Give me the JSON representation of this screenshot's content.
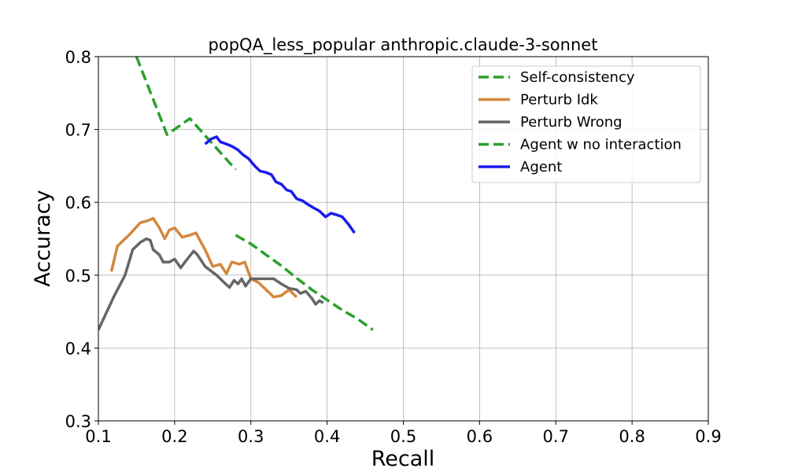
{
  "chart_data": {
    "type": "line",
    "title": "popQA_less_popular anthropic.claude-3-sonnet",
    "xlabel": "Recall",
    "ylabel": "Accuracy",
    "xlim": [
      0.1,
      0.9
    ],
    "ylim": [
      0.3,
      0.8
    ],
    "xticks": [
      "0.1",
      "0.2",
      "0.3",
      "0.4",
      "0.5",
      "0.6",
      "0.7",
      "0.8",
      "0.9"
    ],
    "yticks": [
      "0.3",
      "0.4",
      "0.5",
      "0.6",
      "0.7",
      "0.8"
    ],
    "grid": true,
    "legend_position": "top-right",
    "series": [
      {
        "name": "Self-consistency",
        "color": "#2ca02c",
        "style": "dashed",
        "points": [
          [
            0.15,
            0.8
          ],
          [
            0.19,
            0.693
          ],
          [
            0.22,
            0.715
          ],
          [
            0.28,
            0.645
          ]
        ]
      },
      {
        "name": "Perturb Idk",
        "color": "#d4873f",
        "style": "solid",
        "points": [
          [
            0.117,
            0.505
          ],
          [
            0.125,
            0.54
          ],
          [
            0.14,
            0.555
          ],
          [
            0.155,
            0.572
          ],
          [
            0.165,
            0.575
          ],
          [
            0.172,
            0.578
          ],
          [
            0.18,
            0.565
          ],
          [
            0.187,
            0.55
          ],
          [
            0.193,
            0.562
          ],
          [
            0.2,
            0.565
          ],
          [
            0.21,
            0.552
          ],
          [
            0.22,
            0.555
          ],
          [
            0.228,
            0.558
          ],
          [
            0.24,
            0.535
          ],
          [
            0.25,
            0.512
          ],
          [
            0.26,
            0.515
          ],
          [
            0.268,
            0.502
          ],
          [
            0.275,
            0.518
          ],
          [
            0.285,
            0.515
          ],
          [
            0.292,
            0.518
          ],
          [
            0.3,
            0.495
          ],
          [
            0.31,
            0.49
          ],
          [
            0.32,
            0.48
          ],
          [
            0.33,
            0.47
          ],
          [
            0.34,
            0.472
          ],
          [
            0.35,
            0.48
          ],
          [
            0.36,
            0.47
          ]
        ]
      },
      {
        "name": "Perturb Wrong",
        "color": "#666666",
        "style": "solid",
        "points": [
          [
            0.1,
            0.425
          ],
          [
            0.12,
            0.47
          ],
          [
            0.135,
            0.5
          ],
          [
            0.145,
            0.535
          ],
          [
            0.155,
            0.545
          ],
          [
            0.163,
            0.55
          ],
          [
            0.168,
            0.548
          ],
          [
            0.172,
            0.535
          ],
          [
            0.18,
            0.528
          ],
          [
            0.185,
            0.518
          ],
          [
            0.193,
            0.518
          ],
          [
            0.2,
            0.522
          ],
          [
            0.208,
            0.51
          ],
          [
            0.215,
            0.52
          ],
          [
            0.225,
            0.533
          ],
          [
            0.23,
            0.528
          ],
          [
            0.24,
            0.512
          ],
          [
            0.255,
            0.5
          ],
          [
            0.265,
            0.49
          ],
          [
            0.272,
            0.483
          ],
          [
            0.278,
            0.493
          ],
          [
            0.283,
            0.488
          ],
          [
            0.288,
            0.495
          ],
          [
            0.293,
            0.485
          ],
          [
            0.3,
            0.495
          ],
          [
            0.31,
            0.495
          ],
          [
            0.33,
            0.495
          ],
          [
            0.34,
            0.488
          ],
          [
            0.35,
            0.482
          ],
          [
            0.36,
            0.48
          ],
          [
            0.365,
            0.475
          ],
          [
            0.372,
            0.478
          ],
          [
            0.38,
            0.468
          ],
          [
            0.385,
            0.46
          ],
          [
            0.39,
            0.465
          ],
          [
            0.395,
            0.462
          ]
        ]
      },
      {
        "name": "Agent w no interaction",
        "color": "#2ca02c",
        "style": "dashed",
        "points": [
          [
            0.28,
            0.555
          ],
          [
            0.3,
            0.543
          ],
          [
            0.32,
            0.528
          ],
          [
            0.34,
            0.513
          ],
          [
            0.36,
            0.496
          ],
          [
            0.38,
            0.48
          ],
          [
            0.4,
            0.466
          ],
          [
            0.42,
            0.452
          ],
          [
            0.44,
            0.44
          ],
          [
            0.46,
            0.425
          ]
        ]
      },
      {
        "name": "Agent",
        "color": "#1a1aee",
        "style": "solid",
        "points": [
          [
            0.24,
            0.68
          ],
          [
            0.248,
            0.687
          ],
          [
            0.255,
            0.69
          ],
          [
            0.26,
            0.683
          ],
          [
            0.268,
            0.68
          ],
          [
            0.275,
            0.677
          ],
          [
            0.283,
            0.672
          ],
          [
            0.29,
            0.665
          ],
          [
            0.297,
            0.66
          ],
          [
            0.305,
            0.65
          ],
          [
            0.312,
            0.643
          ],
          [
            0.32,
            0.641
          ],
          [
            0.327,
            0.638
          ],
          [
            0.333,
            0.628
          ],
          [
            0.34,
            0.625
          ],
          [
            0.347,
            0.617
          ],
          [
            0.353,
            0.615
          ],
          [
            0.36,
            0.605
          ],
          [
            0.368,
            0.602
          ],
          [
            0.375,
            0.597
          ],
          [
            0.383,
            0.592
          ],
          [
            0.39,
            0.588
          ],
          [
            0.398,
            0.58
          ],
          [
            0.405,
            0.585
          ],
          [
            0.412,
            0.583
          ],
          [
            0.42,
            0.58
          ],
          [
            0.428,
            0.57
          ],
          [
            0.436,
            0.558
          ]
        ]
      }
    ]
  }
}
